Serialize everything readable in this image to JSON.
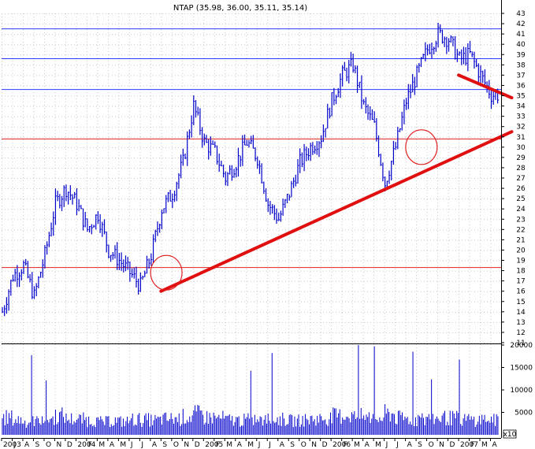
{
  "chart_data": {
    "type": "line",
    "title": "NTAP (35.98, 36.00, 35.11, 35.14)",
    "style": "ohlc-bars",
    "colors": {
      "price": "#0000cc",
      "volume": "#0000cc",
      "horizontal_resistance": "#2b3bff",
      "horizontal_support": "#e02020",
      "trendline": "#e01010",
      "circle": "#e02020",
      "grid": "#c8c8c8",
      "axis": "#000000"
    },
    "price_axis": {
      "ylim": [
        11,
        43
      ],
      "tick_labels": [
        "11",
        "12",
        "13",
        "14",
        "15",
        "16",
        "17",
        "18",
        "19",
        "20",
        "21",
        "22",
        "23",
        "24",
        "25",
        "26",
        "27",
        "28",
        "29",
        "30",
        "31",
        "32",
        "33",
        "34",
        "35",
        "36",
        "37",
        "38",
        "39",
        "40",
        "41",
        "42",
        "43"
      ]
    },
    "volume_axis": {
      "ylim": [
        0,
        20000
      ],
      "tick_labels": [
        "20000",
        "15000",
        "10000",
        "5000"
      ],
      "unit_label": "x10"
    },
    "x_axis": {
      "start": "2003-05",
      "end": "2007-04",
      "tick_labels": [
        "2003",
        "J",
        "A",
        "S",
        "O",
        "N",
        "D",
        "2004",
        "F",
        "M",
        "A",
        "M",
        "J",
        "J",
        "A",
        "S",
        "O",
        "N",
        "D",
        "2005",
        "F",
        "M",
        "A",
        "M",
        "J",
        "J",
        "A",
        "S",
        "O",
        "N",
        "D",
        "2006",
        "F",
        "M",
        "A",
        "M",
        "J",
        "J",
        "A",
        "S",
        "O",
        "N",
        "D",
        "2007",
        "F",
        "M",
        "A"
      ]
    },
    "price_path": {
      "month_index": [
        0,
        1,
        2,
        3,
        4,
        5,
        6,
        7,
        8,
        9,
        10,
        11,
        12,
        13,
        14,
        15,
        16,
        17,
        18,
        19,
        20,
        21,
        22,
        23,
        24,
        25,
        26,
        27,
        28,
        29,
        30,
        31,
        32,
        33,
        34,
        35,
        36,
        37,
        38,
        39,
        40,
        41,
        42,
        43,
        44,
        45,
        46
      ],
      "close": [
        14.0,
        17.5,
        18.5,
        15.5,
        19.5,
        24.5,
        26.0,
        24.5,
        22.0,
        23.5,
        20.0,
        19.0,
        17.8,
        16.5,
        19.5,
        24.0,
        25.5,
        28.5,
        34.0,
        30.5,
        29.5,
        27.0,
        28.5,
        30.5,
        29.0,
        24.5,
        23.0,
        25.5,
        28.5,
        30.0,
        31.0,
        34.5,
        37.0,
        38.0,
        34.0,
        32.0,
        26.5,
        30.0,
        34.5,
        37.0,
        39.5,
        41.0,
        40.5,
        38.5,
        39.0,
        37.0,
        35.1
      ],
      "volume": [
        4000,
        3500,
        3000,
        3200,
        3800,
        4500,
        3700,
        3600,
        3400,
        3000,
        3300,
        3100,
        3600,
        3500,
        3400,
        3700,
        3800,
        4200,
        4800,
        4100,
        3900,
        3500,
        3400,
        3600,
        3300,
        3700,
        3600,
        3300,
        3500,
        3700,
        3900,
        4400,
        4600,
        4300,
        4100,
        3800,
        4900,
        3900,
        3700,
        3600,
        3800,
        4000,
        3900,
        3600,
        3500,
        3700,
        3400
      ]
    },
    "horizontal_lines": [
      {
        "price": 41.5,
        "color": "blue"
      },
      {
        "price": 38.6,
        "color": "blue"
      },
      {
        "price": 35.6,
        "color": "blue"
      },
      {
        "price": 30.8,
        "color": "red"
      },
      {
        "price": 18.3,
        "color": "red"
      }
    ],
    "trendlines": [
      {
        "x1": "2004-08",
        "y1": 16.0,
        "x2": "2007-04",
        "y2": 31.5
      },
      {
        "x1": "2006-12",
        "y1": 37.0,
        "x2": "2007-04",
        "y2": 34.8
      }
    ],
    "circles": [
      {
        "x": "2004-08",
        "price": 17.8
      },
      {
        "x": "2006-08",
        "price": 30.0
      }
    ]
  }
}
